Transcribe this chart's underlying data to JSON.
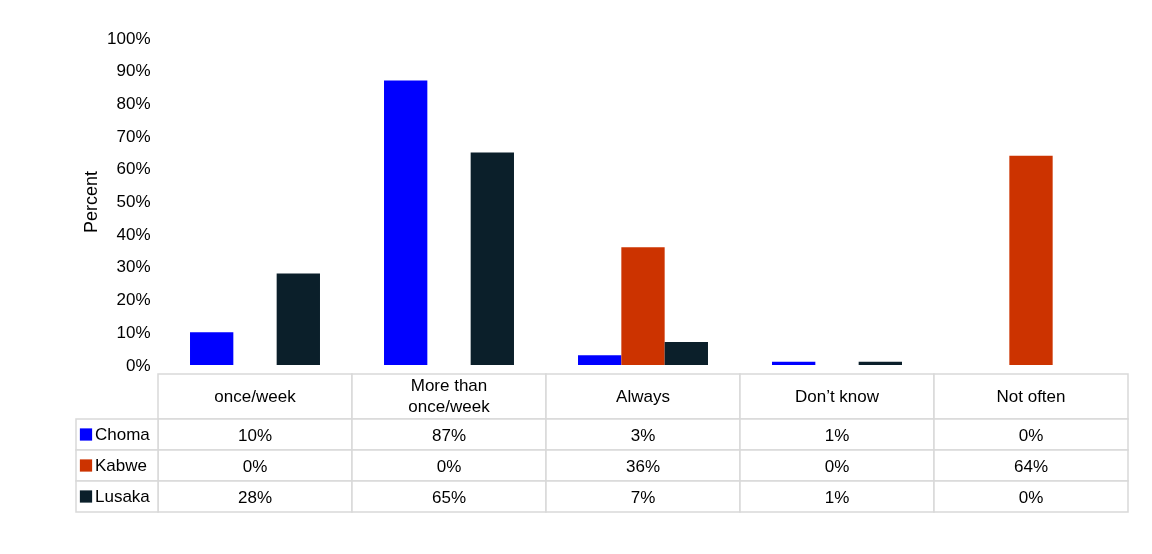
{
  "chart_data": {
    "type": "bar",
    "ylabel": "Percent",
    "categories": [
      "once/week",
      "More than once/week",
      "Always",
      "Don’t know",
      "Not often"
    ],
    "series": [
      {
        "name": "Choma",
        "color": "#0000ff",
        "values": [
          10,
          87,
          3,
          1,
          0
        ],
        "value_labels": [
          "10%",
          "87%",
          "3%",
          "1%",
          "0%"
        ]
      },
      {
        "name": "Kabwe",
        "color": "#cc3300",
        "values": [
          0,
          0,
          36,
          0,
          64
        ],
        "value_labels": [
          "0%",
          "0%",
          "36%",
          "0%",
          "64%"
        ]
      },
      {
        "name": "Lusaka",
        "color": "#0b1f2a",
        "values": [
          28,
          65,
          7,
          1,
          0
        ],
        "value_labels": [
          "28%",
          "65%",
          "7%",
          "1%",
          "0%"
        ]
      }
    ],
    "ylim": [
      0,
      100
    ],
    "yticks": [
      {
        "value": 0,
        "label": "0%"
      },
      {
        "value": 10,
        "label": "10%"
      },
      {
        "value": 20,
        "label": "20%"
      },
      {
        "value": 30,
        "label": "30%"
      },
      {
        "value": 40,
        "label": "40%"
      },
      {
        "value": 50,
        "label": "50%"
      },
      {
        "value": 60,
        "label": "60%"
      },
      {
        "value": 70,
        "label": "70%"
      },
      {
        "value": 80,
        "label": "80%"
      },
      {
        "value": 90,
        "label": "90%"
      },
      {
        "value": 100,
        "label": "100%"
      }
    ],
    "grid": false,
    "legend": "bottom"
  }
}
